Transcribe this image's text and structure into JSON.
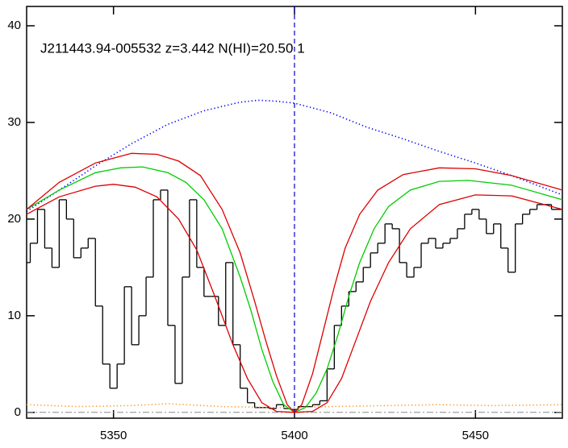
{
  "chart_data": {
    "type": "line",
    "title": "J211443.94-005532 z=3.442 N(HI)=20.50 1",
    "xlim": [
      5326,
      5474
    ],
    "ylim": [
      -0.6,
      42
    ],
    "xticks": [
      5350,
      5400,
      5450
    ],
    "yticks": [
      0,
      10,
      20,
      30,
      40
    ],
    "vline": 5400,
    "vline_color": "#0000cc",
    "hline": 0,
    "hline_color": "#888888",
    "series": [
      {
        "color": "#000000",
        "style": "steps",
        "x": [
          5326,
          5328,
          5330,
          5332,
          5334,
          5336,
          5338,
          5340,
          5342,
          5344,
          5346,
          5348,
          5350,
          5352,
          5354,
          5356,
          5358,
          5360,
          5362,
          5364,
          5366,
          5368,
          5370,
          5372,
          5374,
          5376,
          5378,
          5380,
          5382,
          5384,
          5386,
          5388,
          5390,
          5392,
          5394,
          5396,
          5398,
          5400,
          5402,
          5404,
          5406,
          5408,
          5410,
          5412,
          5414,
          5416,
          5418,
          5420,
          5422,
          5424,
          5426,
          5428,
          5430,
          5432,
          5434,
          5436,
          5438,
          5440,
          5442,
          5444,
          5446,
          5448,
          5450,
          5452,
          5454,
          5456,
          5458,
          5460,
          5462,
          5464,
          5466,
          5468,
          5470,
          5472,
          5474
        ],
        "values": [
          15.5,
          17.5,
          21,
          17,
          15,
          22,
          20,
          16,
          17,
          18,
          11,
          5,
          2.5,
          5,
          13,
          7,
          10,
          14,
          22,
          23,
          9,
          3,
          14,
          22,
          15,
          12,
          12,
          9,
          15.5,
          7,
          2.5,
          1,
          0.5,
          0.5,
          0.4,
          0.8,
          0.4,
          0.3,
          0.6,
          0.6,
          0.8,
          1.2,
          4.5,
          9,
          11,
          12.5,
          13.5,
          15,
          16.5,
          17.5,
          19.5,
          19,
          15.5,
          14,
          15,
          17.5,
          18,
          17,
          17.5,
          18,
          19,
          20.5,
          21,
          20,
          18.5,
          19.5,
          17,
          14.5,
          19.5,
          20.5,
          21,
          21.5,
          21.5,
          21,
          21
        ]
      },
      {
        "color": "#0000ff",
        "style": "dotted",
        "x": [
          5326,
          5335,
          5345,
          5355,
          5365,
          5375,
          5385,
          5390,
          5395,
          5400,
          5410,
          5420,
          5430,
          5440,
          5450,
          5460,
          5474
        ],
        "values": [
          20.8,
          23,
          25.5,
          27.8,
          29.8,
          31.2,
          32.1,
          32.3,
          32.2,
          32,
          31,
          29.5,
          28.3,
          27,
          25.8,
          24.5,
          22.5
        ]
      },
      {
        "color": "#00cc00",
        "style": "solid",
        "x": [
          5326,
          5335,
          5345,
          5352,
          5358,
          5365,
          5370,
          5375,
          5380,
          5385,
          5388,
          5391,
          5394,
          5397,
          5400,
          5403,
          5406,
          5409,
          5412,
          5415,
          5418,
          5422,
          5426,
          5432,
          5440,
          5448,
          5460,
          5474
        ],
        "values": [
          21,
          23,
          24.8,
          25.3,
          25.4,
          24.8,
          23.8,
          22,
          19,
          14,
          10.5,
          6.5,
          3.2,
          0.8,
          0,
          0.5,
          2,
          4.5,
          8,
          12,
          15.5,
          19,
          21.3,
          23,
          23.9,
          24,
          23.5,
          22
        ]
      },
      {
        "color": "#dd0000",
        "style": "solid",
        "x": [
          5326,
          5335,
          5345,
          5355,
          5362,
          5368,
          5374,
          5380,
          5385,
          5389,
          5392,
          5395,
          5398,
          5400,
          5402,
          5405,
          5408,
          5411,
          5414,
          5418,
          5423,
          5430,
          5440,
          5450,
          5460,
          5474
        ],
        "values": [
          21,
          23.8,
          25.8,
          26.8,
          26.7,
          26,
          24.5,
          21,
          16.5,
          11.5,
          7.5,
          3.8,
          0.8,
          0,
          0.8,
          4,
          8.5,
          13,
          17,
          20.5,
          23,
          24.6,
          25.3,
          25.2,
          24.5,
          23
        ]
      },
      {
        "color": "#dd0000",
        "style": "solid",
        "x": [
          5326,
          5335,
          5345,
          5350,
          5356,
          5362,
          5368,
          5373,
          5378,
          5383,
          5387,
          5391,
          5395,
          5400,
          5405,
          5409,
          5413,
          5417,
          5421,
          5426,
          5432,
          5440,
          5450,
          5460,
          5474
        ],
        "values": [
          20.5,
          22.3,
          23.4,
          23.6,
          23.3,
          22.3,
          20,
          16.8,
          12,
          7,
          3.5,
          1,
          0.1,
          0,
          0.1,
          1,
          3.5,
          7.5,
          11.5,
          15.5,
          19,
          21.5,
          22.5,
          22.4,
          21
        ]
      },
      {
        "color": "#ff9933",
        "style": "dotted",
        "x": [
          5326,
          5340,
          5355,
          5365,
          5380,
          5395,
          5400,
          5410,
          5425,
          5440,
          5455,
          5474
        ],
        "values": [
          0.8,
          0.6,
          0.7,
          0.9,
          0.6,
          0.5,
          0.5,
          0.6,
          0.7,
          0.8,
          0.7,
          0.8
        ]
      }
    ]
  }
}
